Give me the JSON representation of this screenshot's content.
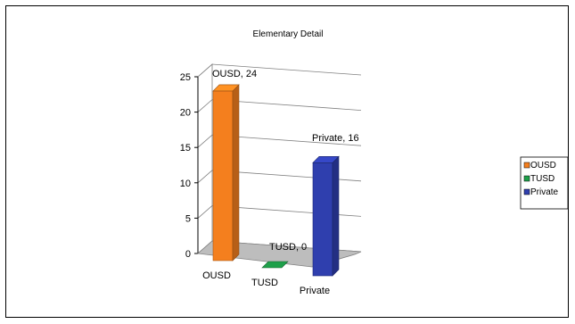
{
  "chart_data": {
    "type": "bar",
    "title": "Elementary Detail",
    "categories": [
      "OUSD",
      "TUSD",
      "Private"
    ],
    "values": [
      24,
      0,
      16
    ],
    "colors": [
      "#f47f1e",
      "#1ea04a",
      "#2f3fae"
    ],
    "data_labels": [
      "OUSD, 24",
      "TUSD, 0",
      "Private, 16"
    ],
    "ylim": [
      0,
      25
    ],
    "yticks": [
      "0",
      "5",
      "10",
      "15",
      "20",
      "25"
    ],
    "grid": true,
    "style": "3d",
    "legend": {
      "placement": "right",
      "items": [
        "OUSD",
        "TUSD",
        "Private"
      ]
    }
  }
}
